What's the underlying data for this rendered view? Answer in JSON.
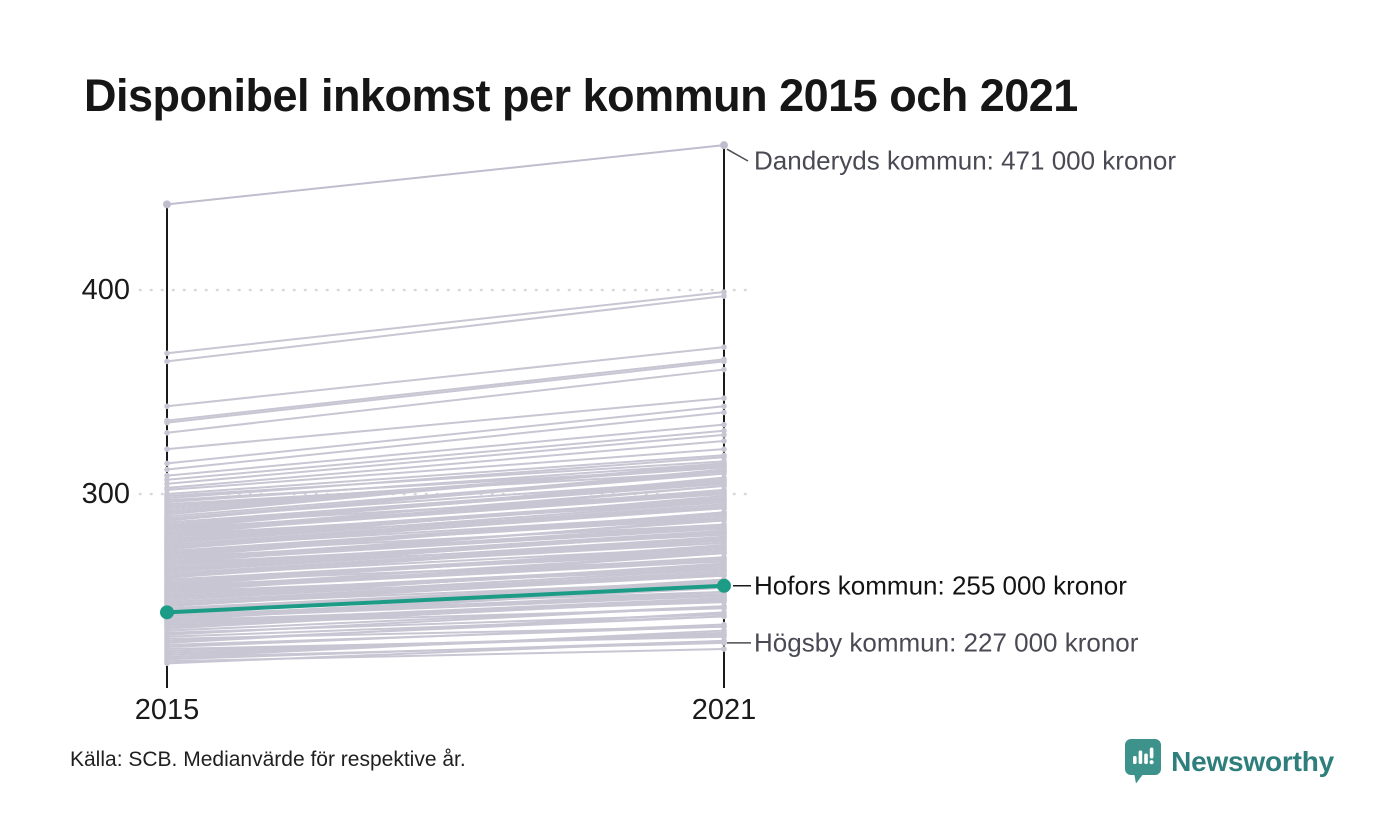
{
  "header": {
    "title": "Disponibel inkomst per kommun 2015 och 2021"
  },
  "chart_data": {
    "type": "line",
    "subtype": "slope-chart",
    "x": [
      2015,
      2021
    ],
    "x_labels": [
      "2015",
      "2021"
    ],
    "y_ticks": [
      400,
      300
    ],
    "y_tick_labels": [
      "400",
      "300"
    ],
    "unit": "tusen kronor",
    "grid": "dotted-horizontal",
    "legend": false,
    "annotations": {
      "danderyd": {
        "name": "Danderyds kommun",
        "value_2021_kronor": "471 000",
        "label": "Danderyds kommun: 471 000 kronor"
      },
      "hofors": {
        "name": "Hofors kommun",
        "value_2021_kronor": "255 000",
        "label": "Hofors kommun: 255 000 kronor"
      },
      "hogsby": {
        "name": "Högsby kommun",
        "value_2021_kronor": "227 000",
        "label": "Högsby kommun: 227 000 kronor"
      }
    },
    "series": {
      "highlight": {
        "name": "Hofors kommun",
        "values": [
          242,
          255
        ]
      },
      "danderyd": {
        "name": "Danderyds kommun",
        "values": [
          442,
          471
        ]
      },
      "hogsby": {
        "name": "Högsby kommun",
        "values": [
          220,
          227
        ]
      },
      "background": [
        [
          369,
          399
        ],
        [
          365,
          397
        ],
        [
          343,
          372
        ],
        [
          336,
          366
        ],
        [
          335,
          365
        ],
        [
          330,
          361
        ],
        [
          322,
          347
        ],
        [
          315,
          343
        ],
        [
          312,
          340
        ],
        [
          309,
          334
        ],
        [
          307,
          331
        ],
        [
          305,
          329
        ],
        [
          303,
          326
        ],
        [
          302,
          322
        ],
        [
          300,
          319
        ],
        [
          299,
          316
        ],
        [
          298,
          318
        ],
        [
          297,
          313
        ],
        [
          296,
          315
        ],
        [
          295,
          311
        ],
        [
          294,
          313
        ],
        [
          293,
          314
        ],
        [
          292,
          314
        ],
        [
          291,
          314
        ],
        [
          290,
          315
        ],
        [
          289,
          311
        ],
        [
          288,
          307
        ],
        [
          287,
          311
        ],
        [
          286,
          306
        ],
        [
          285,
          301
        ],
        [
          284,
          306
        ],
        [
          283,
          308
        ],
        [
          282,
          301
        ],
        [
          281,
          302
        ],
        [
          280,
          296
        ],
        [
          279,
          297
        ],
        [
          278,
          297
        ],
        [
          277,
          298
        ],
        [
          276,
          299
        ],
        [
          275,
          295
        ],
        [
          274,
          290
        ],
        [
          273,
          294
        ],
        [
          272,
          290
        ],
        [
          271,
          285
        ],
        [
          270,
          290
        ],
        [
          269,
          291
        ],
        [
          268,
          284
        ],
        [
          267,
          285
        ],
        [
          266,
          280
        ],
        [
          265,
          281
        ],
        [
          264,
          281
        ],
        [
          263,
          281
        ],
        [
          262,
          282
        ],
        [
          261,
          278
        ],
        [
          260,
          274
        ],
        [
          259,
          278
        ],
        [
          258,
          273
        ],
        [
          257,
          268
        ],
        [
          256,
          273
        ],
        [
          255,
          275
        ],
        [
          254,
          268
        ],
        [
          253,
          269
        ],
        [
          252,
          263
        ],
        [
          251,
          264
        ],
        [
          250,
          264
        ],
        [
          249,
          265
        ],
        [
          248,
          266
        ],
        [
          247,
          262
        ],
        [
          246,
          257
        ],
        [
          245,
          261
        ],
        [
          244,
          257
        ],
        [
          243,
          252
        ],
        [
          242,
          257
        ],
        [
          241,
          258
        ],
        [
          240,
          251
        ],
        [
          239,
          252
        ],
        [
          238,
          247
        ],
        [
          237,
          248
        ],
        [
          236,
          248
        ],
        [
          235,
          248
        ],
        [
          234,
          249
        ],
        [
          233,
          245
        ],
        [
          232,
          241
        ],
        [
          231,
          245
        ],
        [
          230,
          240
        ],
        [
          229,
          235
        ],
        [
          228,
          240
        ],
        [
          227,
          242
        ],
        [
          226,
          235
        ],
        [
          225,
          236
        ],
        [
          224,
          230
        ],
        [
          223,
          231
        ],
        [
          222,
          231
        ],
        [
          221,
          232
        ],
        [
          220,
          233
        ],
        [
          219,
          228
        ],
        [
          218,
          224
        ],
        [
          217,
          228
        ],
        [
          288,
          310
        ],
        [
          287,
          312
        ],
        [
          286,
          305
        ],
        [
          285,
          305
        ],
        [
          284,
          307
        ],
        [
          283,
          300
        ],
        [
          282,
          304
        ],
        [
          281,
          300
        ],
        [
          280,
          304
        ],
        [
          279,
          298
        ],
        [
          278,
          293
        ],
        [
          277,
          298
        ],
        [
          276,
          296
        ],
        [
          275,
          293
        ],
        [
          274,
          293
        ],
        [
          273,
          295
        ],
        [
          272,
          288
        ],
        [
          271,
          289
        ],
        [
          270,
          291
        ],
        [
          269,
          283
        ],
        [
          268,
          287
        ],
        [
          267,
          283
        ],
        [
          266,
          288
        ],
        [
          265,
          282
        ],
        [
          264,
          277
        ],
        [
          263,
          281
        ],
        [
          262,
          279
        ],
        [
          261,
          276
        ],
        [
          260,
          277
        ],
        [
          259,
          279
        ],
        [
          258,
          271
        ],
        [
          257,
          272
        ],
        [
          256,
          274
        ],
        [
          255,
          267
        ],
        [
          254,
          271
        ],
        [
          253,
          267
        ],
        [
          252,
          271
        ],
        [
          251,
          265
        ],
        [
          250,
          260
        ],
        [
          249,
          265
        ],
        [
          248,
          263
        ],
        [
          247,
          260
        ],
        [
          246,
          260
        ],
        [
          245,
          262
        ],
        [
          244,
          255
        ],
        [
          243,
          256
        ],
        [
          242,
          258
        ],
        [
          241,
          250
        ],
        [
          240,
          254
        ],
        [
          239,
          250
        ],
        [
          238,
          255
        ],
        [
          237,
          249
        ],
        [
          236,
          244
        ],
        [
          235,
          248
        ]
      ]
    }
  },
  "footer": {
    "source": "Källa: SCB. Medianvärde för respektive år.",
    "brand": "Newsworthy"
  },
  "colors": {
    "accent": "#1c9c87",
    "background_line": "#c8c6d3",
    "endpoint_dot": "#c0bece",
    "axis": "#1a1a1a",
    "gridline": "#d7d7db",
    "leader_gray": "#4b4b52",
    "leader_dark": "#1a1a1a",
    "annotation_gray": "#4a4a55",
    "annotation_dark": "#141414",
    "brand_teal": "#2e7e7c",
    "logo_fill": "#3d938b"
  }
}
